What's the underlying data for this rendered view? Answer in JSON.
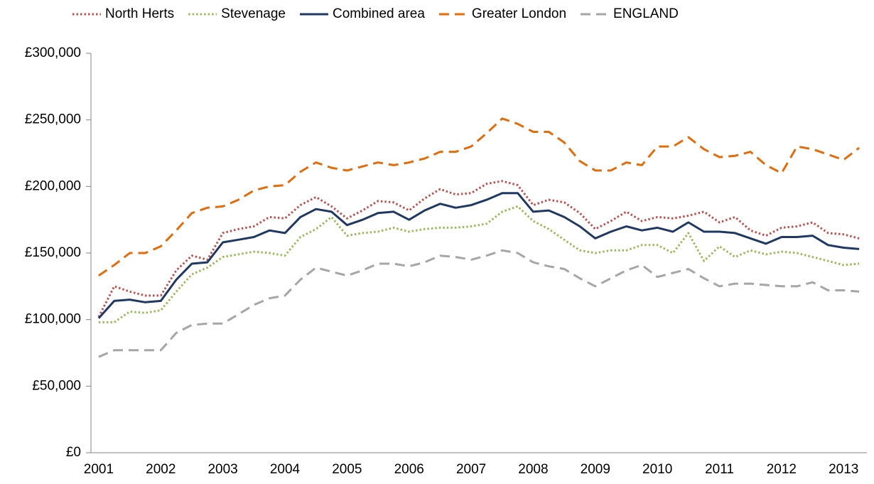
{
  "chart_data": {
    "type": "line",
    "categories": [
      "2001",
      null,
      null,
      null,
      "2002",
      null,
      null,
      null,
      "2003",
      null,
      null,
      null,
      "2004",
      null,
      null,
      null,
      "2005",
      null,
      null,
      null,
      "2006",
      null,
      null,
      null,
      "2007",
      null,
      null,
      null,
      "2008",
      null,
      null,
      null,
      "2009",
      null,
      null,
      null,
      "2010",
      null,
      null,
      null,
      "2011",
      null,
      null,
      null,
      "2012",
      null,
      null,
      null,
      "2013",
      null
    ],
    "series": [
      {
        "name": "North Herts",
        "color": "#c0504d",
        "style": "dotted",
        "values": [
          102000,
          125000,
          121000,
          118000,
          118000,
          137000,
          148000,
          145000,
          165000,
          168000,
          170000,
          177000,
          176000,
          186000,
          192000,
          185000,
          176000,
          182000,
          189000,
          188000,
          182000,
          191000,
          198000,
          194000,
          195000,
          202000,
          204000,
          201000,
          186000,
          190000,
          188000,
          180000,
          168000,
          174000,
          181000,
          174000,
          177000,
          176000,
          178000,
          181000,
          173000,
          177000,
          167000,
          163000,
          169000,
          170000,
          173000,
          165000,
          164000,
          161000
        ]
      },
      {
        "name": "Stevenage",
        "color": "#9bbb59",
        "style": "dotted",
        "values": [
          98000,
          98000,
          106000,
          105000,
          107000,
          121000,
          134000,
          139000,
          147000,
          149000,
          151000,
          150000,
          148000,
          162000,
          168000,
          177000,
          163000,
          165000,
          166000,
          169000,
          166000,
          168000,
          169000,
          169000,
          170000,
          172000,
          181000,
          185000,
          174000,
          168000,
          160000,
          152000,
          150000,
          152000,
          152000,
          156000,
          156000,
          150000,
          165000,
          144000,
          155000,
          147000,
          152000,
          149000,
          151000,
          150000,
          147000,
          144000,
          141000,
          142000
        ]
      },
      {
        "name": "Combined area",
        "color": "#1f3864",
        "style": "solid",
        "values": [
          101000,
          114000,
          115000,
          113000,
          114000,
          130000,
          142000,
          143000,
          158000,
          160000,
          162000,
          167000,
          165000,
          177000,
          183000,
          181000,
          171000,
          175000,
          180000,
          181000,
          175000,
          182000,
          187000,
          184000,
          186000,
          190000,
          195000,
          195000,
          181000,
          182000,
          177000,
          170000,
          161000,
          166000,
          170000,
          167000,
          169000,
          166000,
          173000,
          166000,
          166000,
          165000,
          161000,
          157000,
          162000,
          162000,
          163000,
          156000,
          154000,
          153000
        ]
      },
      {
        "name": "Greater London",
        "color": "#e46c0a",
        "style": "dashed",
        "values": [
          133000,
          141000,
          150000,
          150000,
          155000,
          167000,
          180000,
          184000,
          185000,
          190000,
          197000,
          200000,
          201000,
          211000,
          218000,
          214000,
          212000,
          215000,
          218000,
          216000,
          218000,
          221000,
          226000,
          226000,
          230000,
          240000,
          251000,
          247000,
          241000,
          241000,
          233000,
          219000,
          212000,
          212000,
          218000,
          216000,
          230000,
          230000,
          237000,
          228000,
          222000,
          223000,
          226000,
          216000,
          210000,
          230000,
          228000,
          224000,
          220000,
          229000
        ]
      },
      {
        "name": "ENGLAND",
        "color": "#a6a6a6",
        "style": "dashed",
        "values": [
          72000,
          77000,
          77000,
          77000,
          77000,
          90000,
          96000,
          97000,
          97000,
          104000,
          111000,
          116000,
          118000,
          130000,
          139000,
          136000,
          133000,
          137000,
          142000,
          142000,
          140000,
          143000,
          148000,
          147000,
          145000,
          148000,
          152000,
          150000,
          143000,
          140000,
          138000,
          131000,
          125000,
          131000,
          137000,
          141000,
          132000,
          135000,
          138000,
          131000,
          125000,
          127000,
          127000,
          126000,
          125000,
          125000,
          128000,
          122000,
          122000,
          121000
        ]
      }
    ],
    "ylim": [
      0,
      300000
    ],
    "yticks": [
      {
        "value": 0,
        "label": "£0"
      },
      {
        "value": 50000,
        "label": "£50,000"
      },
      {
        "value": 100000,
        "label": "£100,000"
      },
      {
        "value": 150000,
        "label": "£150,000"
      },
      {
        "value": 200000,
        "label": "£200,000"
      },
      {
        "value": 250000,
        "label": "£250,000"
      },
      {
        "value": 300000,
        "label": "£300,000"
      }
    ],
    "grid": false,
    "legend": "top"
  }
}
